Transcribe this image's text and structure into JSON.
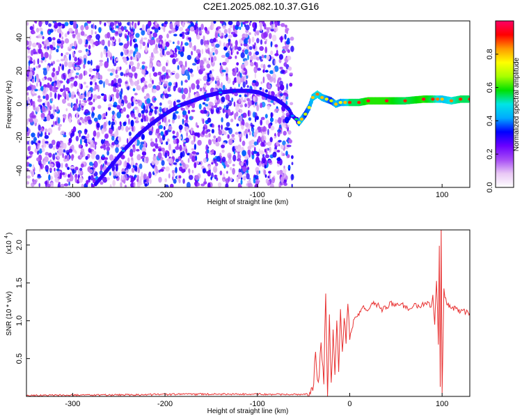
{
  "title": "C2E1.2025.082.10.37.G16",
  "chart_data": [
    {
      "type": "heatmap",
      "xlabel": "Height of straight line (km)",
      "ylabel": "Frequency (Hz)",
      "xlim": [
        -350,
        130
      ],
      "ylim": [
        -50,
        50
      ],
      "xticks": [
        -300,
        -200,
        -100,
        0,
        100
      ],
      "yticks": [
        -40,
        -20,
        0,
        20,
        40
      ],
      "colorbar": {
        "label": "Normalized spectral amplitude",
        "range": [
          0,
          1
        ],
        "ticks": [
          0.0,
          0.2,
          0.4,
          0.6,
          0.8
        ],
        "tick_labels": [
          "0.0",
          "0.2",
          "0.4",
          "0.6",
          "0.8"
        ],
        "colors": [
          "#ffffff",
          "#e9c8f5",
          "#a64cf5",
          "#6a00ff",
          "#0000ff",
          "#00aaff",
          "#00e5e5",
          "#00e000",
          "#a8ff00",
          "#ffff00",
          "#ff9900",
          "#ff0000",
          "#ff0066"
        ]
      },
      "noise_region_x": [
        -350,
        -62
      ],
      "ridge": {
        "x": [
          -275,
          -260,
          -245,
          -230,
          -215,
          -200,
          -185,
          -170,
          -155,
          -140,
          -125,
          -110,
          -98,
          -90,
          -80,
          -72,
          -66,
          -62,
          -58,
          -55,
          -52,
          -48,
          -44,
          -40,
          -35,
          -30,
          -25,
          -20,
          -15,
          -10,
          -5,
          0,
          10,
          20,
          40,
          60,
          80,
          90,
          95,
          100,
          110,
          120,
          130
        ],
        "y": [
          -48,
          -38,
          -28,
          -19,
          -12,
          -6,
          -1,
          2,
          5,
          7,
          8,
          8,
          7,
          5,
          3,
          0,
          -3,
          -7,
          -9,
          -11,
          -9,
          -6,
          -2,
          4,
          6,
          4,
          3,
          2,
          0,
          1,
          1,
          1,
          1,
          2,
          2,
          2,
          3,
          3,
          3,
          3,
          2,
          3,
          3
        ],
        "amplitude": [
          0.3,
          0.35,
          0.4,
          0.35,
          0.3,
          0.35,
          0.4,
          0.35,
          0.35,
          0.4,
          0.35,
          0.35,
          0.3,
          0.35,
          0.3,
          0.3,
          0.35,
          0.4,
          0.55,
          0.75,
          0.8,
          0.7,
          0.75,
          0.8,
          0.85,
          0.8,
          0.75,
          0.7,
          0.8,
          0.75,
          0.8,
          0.9,
          0.9,
          0.95,
          0.95,
          0.9,
          0.95,
          0.9,
          0.85,
          0.8,
          0.85,
          0.9,
          0.9
        ]
      }
    },
    {
      "type": "line",
      "xlabel": "Height of straight line (km)",
      "ylabel": "SNR (10 * v/v)",
      "y_multiplier": "(x10",
      "y_multiplier_exp": "4",
      "xlim": [
        -350,
        130
      ],
      "ylim": [
        0,
        22000
      ],
      "xticks": [
        -300,
        -200,
        -100,
        0,
        100
      ],
      "yticks": [
        5000,
        10000,
        15000,
        20000
      ],
      "ytick_labels": [
        "0.5",
        "1.0",
        "1.5",
        "2.0"
      ],
      "series": [
        {
          "color": "#e83030",
          "x": [
            -350,
            -300,
            -250,
            -200,
            -150,
            -100,
            -60,
            -45,
            -40,
            -37,
            -34,
            -31,
            -28,
            -26,
            -24,
            -22,
            -20,
            -18,
            -16,
            -14,
            -12,
            -10,
            -8,
            -6,
            -4,
            -2,
            0,
            5,
            10,
            15,
            20,
            25,
            30,
            35,
            40,
            45,
            50,
            55,
            60,
            65,
            70,
            75,
            80,
            85,
            88,
            90,
            92,
            94,
            96,
            97,
            98,
            99,
            100,
            102,
            105,
            110,
            115,
            120,
            125,
            130
          ],
          "y": [
            100,
            150,
            200,
            250,
            300,
            300,
            250,
            300,
            700,
            5500,
            1000,
            7000,
            2000,
            14000,
            500,
            10000,
            1500,
            9000,
            3500,
            10000,
            4000,
            11000,
            5500,
            10500,
            6500,
            12500,
            7500,
            10500,
            11000,
            11700,
            11200,
            12200,
            12100,
            11500,
            11900,
            12300,
            12000,
            12400,
            11800,
            11600,
            12000,
            11800,
            12200,
            12500,
            11500,
            13500,
            9500,
            15500,
            7000,
            20000,
            1000,
            22000,
            500,
            14000,
            12200,
            11800,
            11500,
            11300,
            11200,
            11000
          ]
        }
      ]
    }
  ]
}
